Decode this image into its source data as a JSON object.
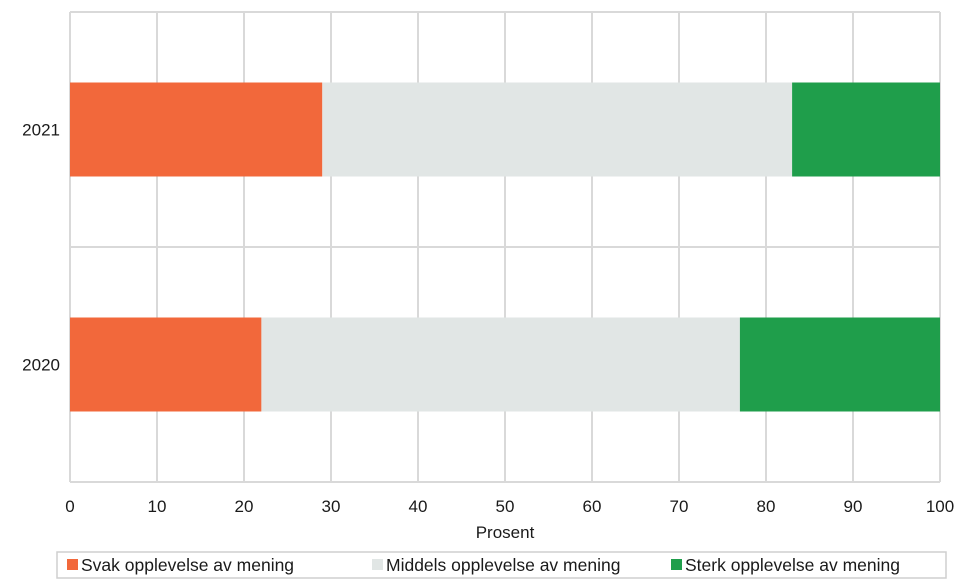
{
  "chart_data": {
    "type": "bar",
    "orientation": "horizontal",
    "stacked": true,
    "categories": [
      "2021",
      "2020"
    ],
    "series": [
      {
        "name": "Svak opplevelse av mening",
        "values": [
          29,
          22
        ],
        "color": "#f2683b"
      },
      {
        "name": "Middels opplevelse av mening",
        "values": [
          54,
          55
        ],
        "color": "#e1e6e5"
      },
      {
        "name": "Sterk opplevelse av mening",
        "values": [
          17,
          23
        ],
        "color": "#1f9e4b"
      }
    ],
    "xlabel": "Prosent",
    "xlim": [
      0,
      100
    ],
    "xticks": [
      "0",
      "10",
      "20",
      "30",
      "40",
      "50",
      "60",
      "70",
      "80",
      "90",
      "100"
    ],
    "grid": true,
    "legend_position": "bottom"
  }
}
